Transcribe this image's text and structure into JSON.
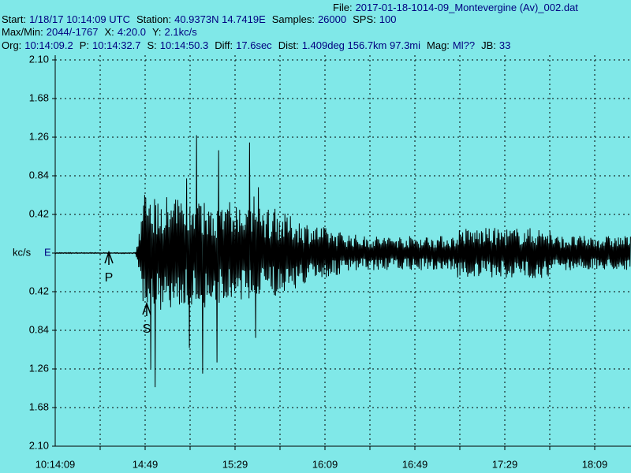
{
  "header": {
    "lines": [
      [
        {
          "label": "File:",
          "value": "2017-01-18-1014-09_Montevergine (Av)_002.dat"
        }
      ],
      [
        {
          "label": "Start:",
          "value": "1/18/17 10:14:09 UTC"
        },
        {
          "label": "Station:",
          "value": "40.9373N 14.7419E"
        },
        {
          "label": "Samples:",
          "value": "26000"
        },
        {
          "label": "SPS:",
          "value": "100"
        }
      ],
      [
        {
          "label": "Max/Min:",
          "value": "2044/-1767"
        },
        {
          "label": "X:",
          "value": "4:20.0"
        },
        {
          "label": "Y:",
          "value": "2.1kc/s"
        }
      ],
      [
        {
          "label": "Org:",
          "value": "10:14:09.2"
        },
        {
          "label": "P:",
          "value": "10:14:32.7"
        },
        {
          "label": "S:",
          "value": "10:14:50.3"
        },
        {
          "label": "Diff:",
          "value": "17.6sec"
        },
        {
          "label": "Dist:",
          "value": "1.409deg 156.7km 97.3mi"
        },
        {
          "label": "Mag:",
          "value": "Ml??"
        },
        {
          "label": "JB:",
          "value": "33"
        }
      ]
    ]
  },
  "plot": {
    "unit": "kc/s",
    "channel": "E",
    "y_labels_upper": [
      "2.10",
      "1.68",
      "1.26",
      "0.84",
      "0.42"
    ],
    "y_labels_lower": [
      "0.42",
      "0.84",
      "1.26",
      "1.68",
      "2.10"
    ],
    "x_labels": [
      "10:14:09",
      "14:49",
      "15:29",
      "16:09",
      "16:49",
      "17:29",
      "18:09"
    ],
    "picks": [
      {
        "label": "P"
      },
      {
        "label": "S"
      }
    ]
  }
}
